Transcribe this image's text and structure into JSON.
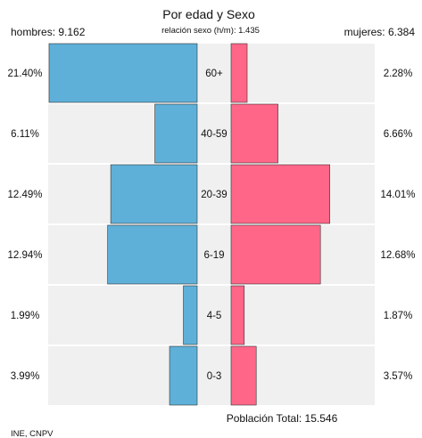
{
  "title": "Por edad y Sexo",
  "subtitle": "relación sexo (h/m): 1.435",
  "men_label": "hombres: 9.162",
  "women_label": "mujeres: 6.384",
  "total_label": "Población Total: 15.546",
  "source": "INE, CNPV",
  "colors": {
    "men": "#5eb0d8",
    "women": "#ff6688",
    "band": "#f0f0f0",
    "edge": "#333333"
  },
  "chart_data": {
    "type": "bar",
    "orientation": "horizontal-pyramid",
    "categories": [
      "60+",
      "40-59",
      "20-39",
      "6-19",
      "4-5",
      "0-3"
    ],
    "series": [
      {
        "name": "hombres",
        "values": [
          21.4,
          6.11,
          12.49,
          12.94,
          1.99,
          3.99
        ],
        "labels": [
          "21.40%",
          "6.11%",
          "12.49%",
          "12.94%",
          "1.99%",
          "3.99%"
        ]
      },
      {
        "name": "mujeres",
        "values": [
          2.28,
          6.66,
          14.01,
          12.68,
          1.87,
          3.57
        ],
        "labels": [
          "2.28%",
          "6.66%",
          "14.01%",
          "12.68%",
          "1.87%",
          "3.57%"
        ]
      }
    ],
    "title": "Por edad y Sexo",
    "subtitle": "relación sexo (h/m): 1.435",
    "xlabel": "",
    "ylabel": "",
    "grid": false,
    "legend": "none"
  }
}
